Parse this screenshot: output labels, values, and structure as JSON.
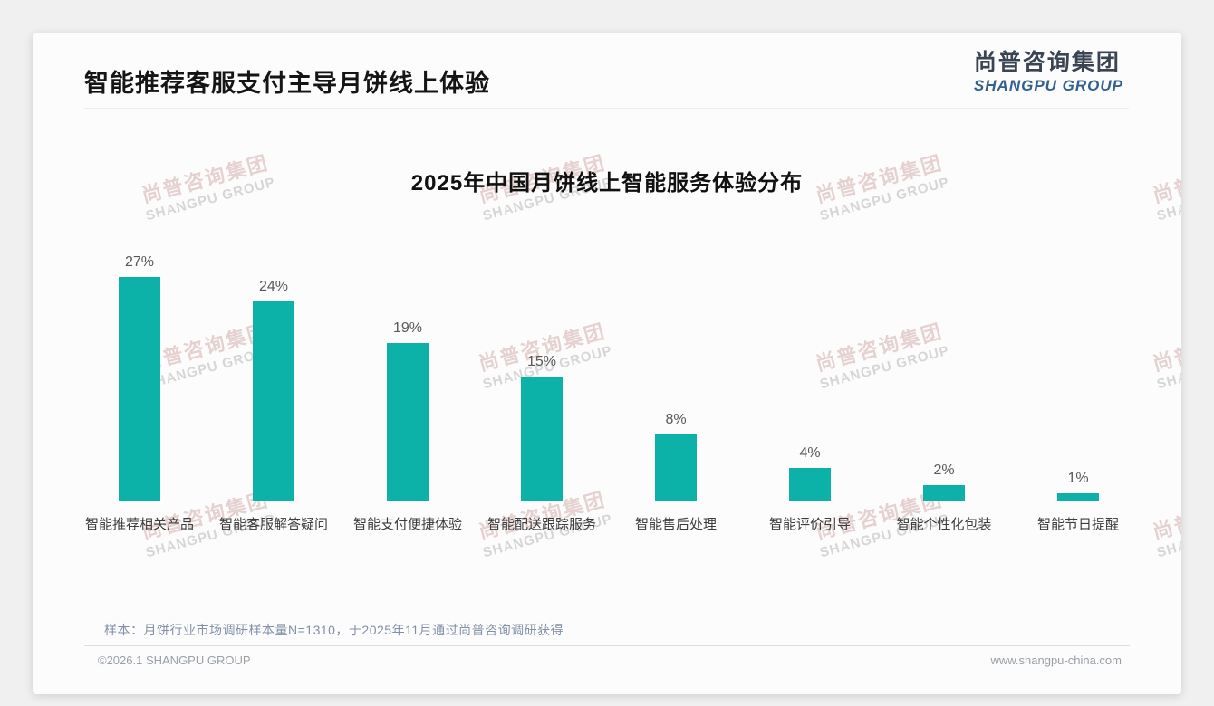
{
  "page_title": "智能推荐客服支付主导月饼线上体验",
  "logo": {
    "cn": "尚普咨询集团",
    "en": "SHANGPU GROUP",
    "cn_color": "#3a4453",
    "en_color": "#31628f"
  },
  "watermark": {
    "line1": "尚普咨询集团",
    "line2": "SHANGPU GROUP"
  },
  "chart_data": {
    "type": "bar",
    "title": "2025年中国月饼线上智能服务体验分布",
    "categories": [
      "智能推荐相关产品",
      "智能客服解答疑问",
      "智能支付便捷体验",
      "智能配送跟踪服务",
      "智能售后处理",
      "智能评价引导",
      "智能个性化包装",
      "智能节日提醒"
    ],
    "values": [
      27,
      24,
      19,
      15,
      8,
      4,
      2,
      1
    ],
    "value_labels": [
      "27%",
      "24%",
      "19%",
      "15%",
      "8%",
      "4%",
      "2%",
      "1%"
    ],
    "xlabel": "",
    "ylabel": "",
    "ylim": [
      0,
      30
    ],
    "grid": false,
    "legend": false,
    "bar_color": "#0cb2a8",
    "value_label_color": "#595959"
  },
  "note": "样本：月饼行业市场调研样本量N=1310，于2025年11月通过尚普咨询调研获得",
  "footer": {
    "left": "©2026.1 SHANGPU GROUP",
    "right": "www.shangpu-china.com"
  }
}
